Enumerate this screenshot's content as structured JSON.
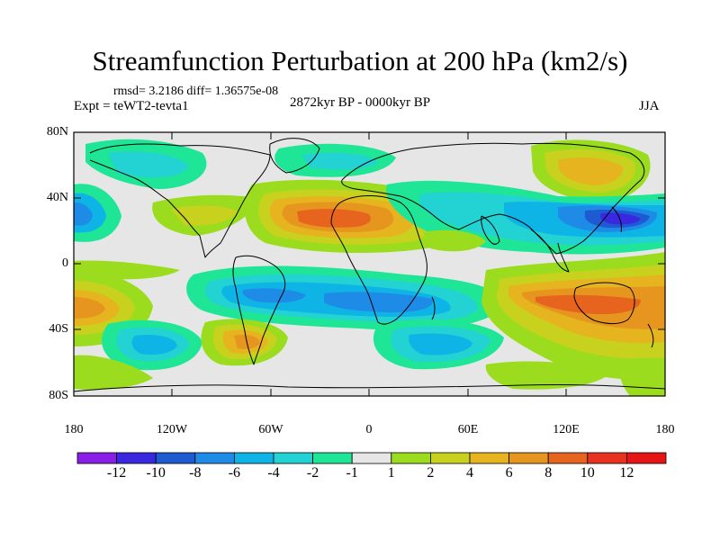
{
  "title": "Streamfunction Perturbation at 200 hPa (km2/s)",
  "stats": "rmsd= 3.2186 diff= 1.36575e-08",
  "expt": "Expt = teWT2-tevta1",
  "period": "2872kyr BP - 0000kyr BP",
  "season": "JJA",
  "lat_labels": [
    "80N",
    "40N",
    "0",
    "40S",
    "80S"
  ],
  "lon_labels": [
    "180",
    "120W",
    "60W",
    "0",
    "60E",
    "120E",
    "180"
  ],
  "colorbar": {
    "labels": [
      "-12",
      "-10",
      "-8",
      "-6",
      "-4",
      "-2",
      "-1",
      "1",
      "2",
      "4",
      "6",
      "8",
      "10",
      "12"
    ],
    "colors": [
      "#8a1ee6",
      "#3a28e0",
      "#1e5ad2",
      "#1e8ce6",
      "#0fb4e6",
      "#23d2d2",
      "#1ee696",
      "#e6e6e6",
      "#9bdc1e",
      "#c8d21e",
      "#e6b41e",
      "#e6961e",
      "#e6641e",
      "#e6321e",
      "#e61414"
    ]
  }
}
